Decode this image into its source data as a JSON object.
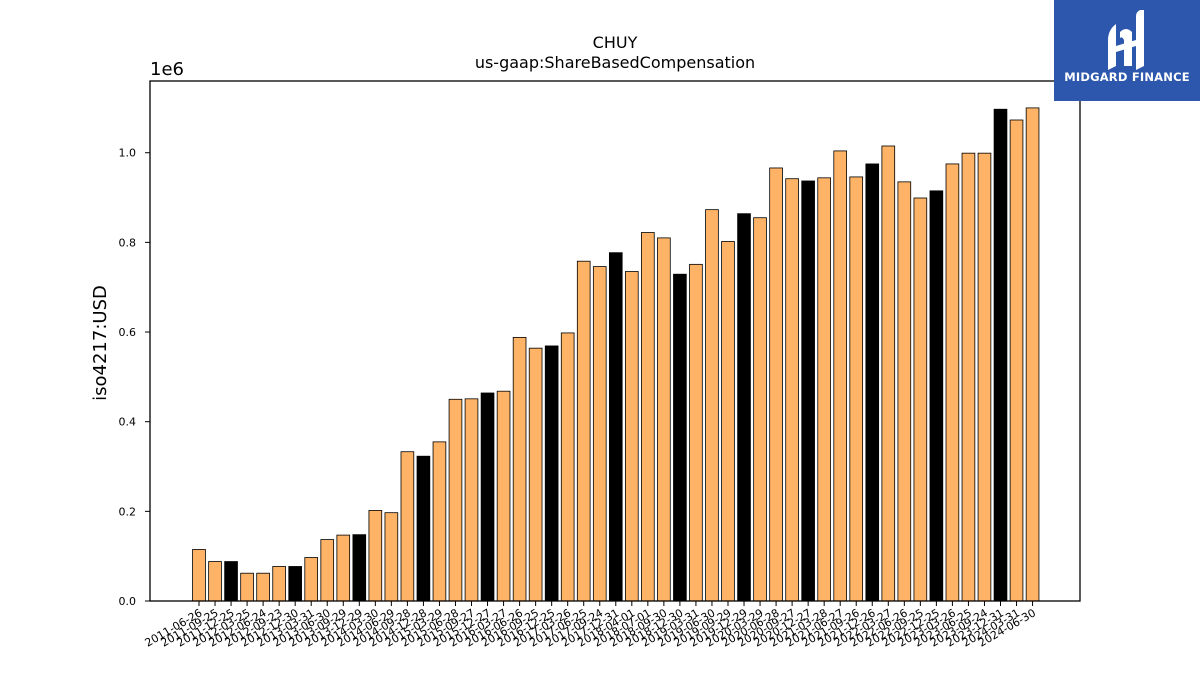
{
  "chart_data": {
    "type": "bar",
    "title": "CHUY",
    "subtitle": "us-gaap:ShareBasedCompensation",
    "ylabel": "iso4217:USD",
    "xlabel": "",
    "y_offset_label": "1e6",
    "ylim": [
      0,
      1160000
    ],
    "y_ticks": [
      "0.0",
      "0.2",
      "0.4",
      "0.6",
      "0.8",
      "1.0"
    ],
    "y_tick_values": [
      0,
      200000,
      400000,
      600000,
      800000,
      1000000
    ],
    "grid": false,
    "colors": {
      "quarter": "#ffb366",
      "annual": "#000000",
      "edge": "#000000"
    },
    "categories": [
      "2011-06-26",
      "2011-09-25",
      "2011-12-25",
      "2012-03-25",
      "2012-06-24",
      "2012-09-23",
      "2012-12-30",
      "2013-03-31",
      "2013-06-30",
      "2013-09-29",
      "2013-12-29",
      "2014-03-30",
      "2014-06-29",
      "2014-09-28",
      "2014-12-28",
      "2015-03-29",
      "2015-06-28",
      "2015-09-27",
      "2015-12-27",
      "2016-03-27",
      "2016-06-26",
      "2016-09-25",
      "2016-12-25",
      "2017-03-26",
      "2017-06-25",
      "2017-09-24",
      "2017-12-31",
      "2018-04-01",
      "2018-07-01",
      "2018-09-30",
      "2018-12-30",
      "2019-03-31",
      "2019-06-30",
      "2019-09-29",
      "2019-12-29",
      "2020-03-29",
      "2020-06-28",
      "2020-09-27",
      "2020-12-27",
      "2021-03-28",
      "2021-06-27",
      "2021-09-26",
      "2021-12-26",
      "2022-03-27",
      "2022-06-26",
      "2022-09-25",
      "2022-12-25",
      "2023-03-26",
      "2023-06-25",
      "2023-09-24",
      "2023-12-31",
      "2024-03-31",
      "2024-06-30"
    ],
    "values": [
      115000,
      88000,
      88000,
      62000,
      62000,
      77000,
      77000,
      97000,
      137000,
      147000,
      148000,
      202000,
      197000,
      333000,
      323000,
      355000,
      450000,
      451000,
      464000,
      468000,
      588000,
      564000,
      569000,
      598000,
      758000,
      746000,
      777000,
      735000,
      822000,
      810000,
      729000,
      751000,
      873000,
      802000,
      864000,
      855000,
      966000,
      942000,
      937000,
      944000,
      1004000,
      946000,
      975000,
      1015000,
      935000,
      899000,
      915000,
      975000,
      999000,
      999000,
      1097000,
      1073000,
      1100000
    ],
    "is_annual": [
      false,
      false,
      true,
      false,
      false,
      false,
      true,
      false,
      false,
      false,
      true,
      false,
      false,
      false,
      true,
      false,
      false,
      false,
      true,
      false,
      false,
      false,
      true,
      false,
      false,
      false,
      true,
      false,
      false,
      false,
      true,
      false,
      false,
      false,
      true,
      false,
      false,
      false,
      true,
      false,
      false,
      false,
      true,
      false,
      false,
      false,
      true,
      false,
      false,
      false,
      true,
      false,
      false
    ]
  },
  "logo": {
    "text": "MIDGARD FINANCE"
  }
}
